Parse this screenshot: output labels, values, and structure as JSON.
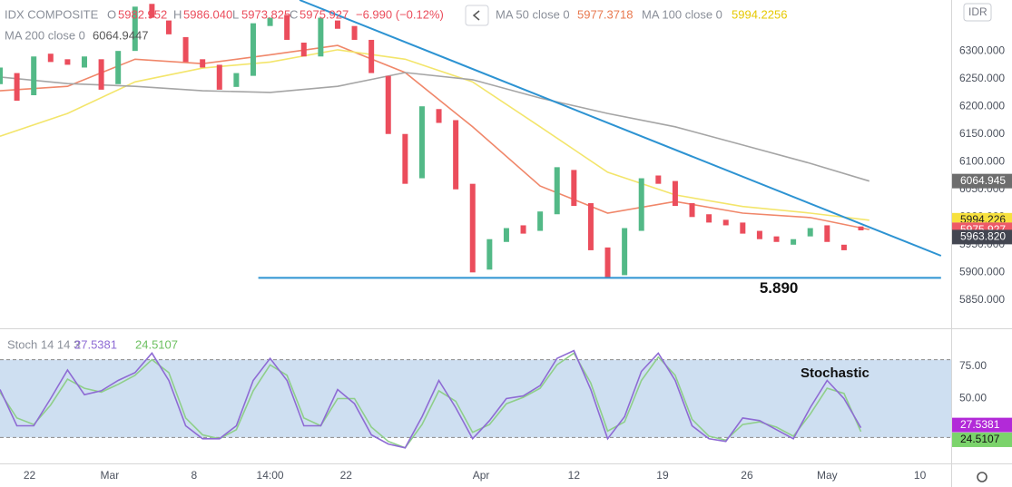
{
  "chart_data": [
    {
      "type": "candlestick",
      "title": "IDX COMPOSITE",
      "currency": "IDR",
      "ohlc_legend": [
        {
          "key": "O",
          "text": "5982.952"
        },
        {
          "key": "H",
          "text": "5986.040"
        },
        {
          "key": "L",
          "text": "5973.825"
        },
        {
          "key": "C",
          "text": "5975.927"
        }
      ],
      "change": "−6.990 (−0.12%)",
      "x": [
        0,
        2,
        4,
        6,
        8,
        10,
        12,
        14,
        16,
        18,
        20,
        22,
        24,
        26,
        28,
        30,
        32,
        34,
        36,
        38,
        40,
        42,
        44,
        46,
        48,
        50,
        52,
        54,
        56,
        58,
        60,
        62,
        64,
        66,
        68,
        70,
        72,
        74,
        76,
        78,
        80,
        82,
        84,
        86,
        88,
        90,
        92,
        94,
        96,
        98,
        100,
        102
      ],
      "open": [
        6240,
        6260,
        6220,
        6295,
        6285,
        6270,
        6285,
        6240,
        6300,
        6385,
        6355,
        6325,
        6285,
        6275,
        6235,
        6255,
        6345,
        6365,
        6315,
        6290,
        6355,
        6345,
        6320,
        6255,
        6150,
        6070,
        6195,
        6175,
        6060,
        5905,
        5955,
        5985,
        5975,
        6005,
        6085,
        6025,
        5945,
        5895,
        5975,
        6075,
        6065,
        6025,
        6005,
        5995,
        5990,
        5975,
        5965,
        5950,
        5965,
        5985,
        5950,
        5982.952
      ],
      "close": [
        6270,
        6210,
        6290,
        6280,
        6275,
        6290,
        6230,
        6300,
        6380,
        6360,
        6330,
        6280,
        6270,
        6230,
        6260,
        6350,
        6360,
        6320,
        6290,
        6360,
        6340,
        6320,
        6260,
        6150,
        6060,
        6200,
        6170,
        6050,
        5900,
        5960,
        5980,
        5970,
        6010,
        6090,
        6020,
        5940,
        5890,
        5980,
        6070,
        6060,
        6020,
        6000,
        5990,
        5985,
        5970,
        5960,
        5955,
        5960,
        5980,
        5955,
        5940,
        5975.927
      ],
      "up_color": "#53b987",
      "down_color": "#eb4d5c",
      "series": [
        {
          "name": "MA 50 close 0",
          "color": "#f0876a",
          "legend_label": "5977.3718",
          "x": [
            0,
            8,
            16,
            24,
            32,
            40,
            48,
            56,
            64,
            72,
            80,
            88,
            96,
            103
          ],
          "values": [
            6228,
            6236,
            6285,
            6277,
            6293,
            6310,
            6261,
            6163,
            6056,
            6007,
            6028,
            6007,
            5999,
            5977.3718
          ]
        },
        {
          "name": "MA 100 close 0",
          "color": "#f3e56b",
          "legend_label": "5994.2256",
          "x": [
            0,
            8,
            16,
            24,
            32,
            40,
            48,
            56,
            64,
            72,
            80,
            88,
            96,
            103
          ],
          "values": [
            6146,
            6187,
            6244,
            6269,
            6280,
            6302,
            6285,
            6244,
            6163,
            6081,
            6040,
            6019,
            6007,
            5994.2256
          ]
        },
        {
          "name": "MA 200 close 0",
          "color": "#a5a5a5",
          "legend_label": "6064.9447",
          "x": [
            0,
            8,
            16,
            24,
            32,
            40,
            48,
            56,
            64,
            72,
            80,
            88,
            96,
            103
          ],
          "values": [
            6253,
            6241,
            6236,
            6228,
            6225,
            6236,
            6261,
            6248,
            6215,
            6187,
            6163,
            6130,
            6097,
            6064.9447
          ]
        }
      ],
      "price_markers": [
        {
          "value": 6064.945,
          "label": "6064.945",
          "color": "#6d6d6d"
        },
        {
          "value": 5994.226,
          "label": "5994.226",
          "color": "#f7e13e"
        },
        {
          "value": 5977.372,
          "label": "5977.372",
          "color": "#f2866a"
        },
        {
          "value": 5975.927,
          "label": "5975.927",
          "color": "#ee5a67"
        },
        {
          "value": 5963.82,
          "label": "5963.820",
          "color": "#434651"
        }
      ],
      "trendlines": [
        {
          "x": [
            35.5,
            111.5
          ],
          "y": [
            6392,
            5930
          ],
          "color": "#2d93d2"
        },
        {
          "x": [
            30.6,
            111.5
          ],
          "y": [
            5890,
            5890
          ],
          "color": "#2d93d2",
          "label": "5.890"
        }
      ],
      "xlim": [
        0,
        112.7
      ],
      "ylim": [
        5799,
        6392
      ],
      "yticks": [
        {
          "value": 5850,
          "label": "5850.000"
        },
        {
          "value": 5900,
          "label": "5900.000"
        },
        {
          "value": 5950,
          "label": "5950.000"
        },
        {
          "value": 6000,
          "label": "6000.000"
        },
        {
          "value": 6050,
          "label": "6050.000"
        },
        {
          "value": 6100,
          "label": "6100.000"
        },
        {
          "value": 6150,
          "label": "6150.000"
        },
        {
          "value": 6200,
          "label": "6200.000"
        },
        {
          "value": 6250,
          "label": "6250.000"
        },
        {
          "value": 6300,
          "label": "6300.000"
        }
      ],
      "xticks": [
        {
          "value": 3.5,
          "label": "22"
        },
        {
          "value": 13,
          "label": "Mar"
        },
        {
          "value": 23,
          "label": "8"
        },
        {
          "value": 32,
          "label": "14:00"
        },
        {
          "value": 41,
          "label": "22"
        },
        {
          "value": 57,
          "label": "Apr"
        },
        {
          "value": 68,
          "label": "12"
        },
        {
          "value": 78.5,
          "label": "19"
        },
        {
          "value": 88.5,
          "label": "26"
        },
        {
          "value": 98,
          "label": "May"
        },
        {
          "value": 109,
          "label": "10"
        }
      ]
    },
    {
      "type": "line",
      "title": "Stoch 14 14 3",
      "annotation": "Stochastic",
      "x": [
        0,
        2,
        4,
        6,
        8,
        10,
        12,
        14,
        16,
        18,
        20,
        22,
        24,
        26,
        28,
        30,
        32,
        34,
        36,
        38,
        40,
        42,
        44,
        46,
        48,
        50,
        52,
        54,
        56,
        58,
        60,
        62,
        64,
        66,
        68,
        70,
        72,
        74,
        76,
        78,
        80,
        82,
        84,
        86,
        88,
        90,
        92,
        94,
        96,
        98,
        100,
        102
      ],
      "series": [
        {
          "name": "%K",
          "color": "#8e6bd4",
          "legend_label": "27.5381",
          "values": [
            57,
            29,
            29,
            50,
            72,
            53,
            56,
            64,
            70,
            85,
            64,
            29,
            19,
            19,
            29,
            64,
            81,
            64,
            29,
            29,
            57,
            46,
            22,
            15,
            12,
            36,
            64,
            43,
            19,
            33,
            50,
            52,
            60,
            81,
            87,
            57,
            19,
            36,
            71,
            85,
            64,
            29,
            19,
            17,
            35,
            33,
            26,
            19,
            43,
            64,
            50,
            27.5381
          ]
        },
        {
          "name": "%D",
          "color": "#8fcf8a",
          "legend_label": "24.5107",
          "values": [
            55,
            35,
            30,
            45,
            65,
            58,
            55,
            61,
            68,
            80,
            70,
            35,
            22,
            19,
            26,
            56,
            76,
            68,
            35,
            29,
            50,
            50,
            28,
            17,
            12,
            30,
            56,
            48,
            24,
            30,
            46,
            51,
            58,
            76,
            85,
            62,
            25,
            32,
            64,
            82,
            68,
            34,
            21,
            18,
            30,
            32,
            28,
            21,
            38,
            58,
            54,
            24.5107
          ]
        }
      ],
      "bands": [
        20,
        80
      ],
      "band_color": "#c5d9ee",
      "xlim": [
        0,
        112.7
      ],
      "ylim": [
        0,
        100
      ],
      "yticks": [
        {
          "value": 75,
          "label": "75.00"
        },
        {
          "value": 50,
          "label": "50.00"
        }
      ]
    }
  ]
}
